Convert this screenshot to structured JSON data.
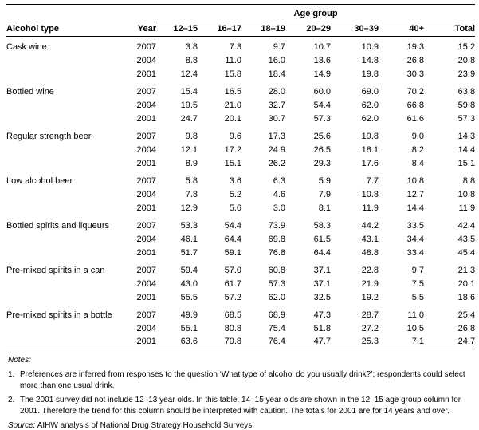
{
  "colors": {
    "text": "#000000",
    "rule": "#000000",
    "background": "#ffffff"
  },
  "table": {
    "spanner": "Age group",
    "columns": [
      "Alcohol type",
      "Year",
      "12–15",
      "16–17",
      "18–19",
      "20–29",
      "30–39",
      "40+",
      "Total"
    ],
    "groups": [
      {
        "label": "Cask wine",
        "rows": [
          {
            "year": "2007",
            "values": [
              "3.8",
              "7.3",
              "9.7",
              "10.7",
              "10.9",
              "19.3",
              "15.2"
            ]
          },
          {
            "year": "2004",
            "values": [
              "8.8",
              "11.0",
              "16.0",
              "13.6",
              "14.8",
              "26.8",
              "20.8"
            ]
          },
          {
            "year": "2001",
            "values": [
              "12.4",
              "15.8",
              "18.4",
              "14.9",
              "19.8",
              "30.3",
              "23.9"
            ]
          }
        ]
      },
      {
        "label": "Bottled wine",
        "rows": [
          {
            "year": "2007",
            "values": [
              "15.4",
              "16.5",
              "28.0",
              "60.0",
              "69.0",
              "70.2",
              "63.8"
            ]
          },
          {
            "year": "2004",
            "values": [
              "19.5",
              "21.0",
              "32.7",
              "54.4",
              "62.0",
              "66.8",
              "59.8"
            ]
          },
          {
            "year": "2001",
            "values": [
              "24.7",
              "20.1",
              "30.7",
              "57.3",
              "62.0",
              "61.6",
              "57.3"
            ]
          }
        ]
      },
      {
        "label": "Regular strength beer",
        "rows": [
          {
            "year": "2007",
            "values": [
              "9.8",
              "9.6",
              "17.3",
              "25.6",
              "19.8",
              "9.0",
              "14.3"
            ]
          },
          {
            "year": "2004",
            "values": [
              "12.1",
              "17.2",
              "24.9",
              "26.5",
              "18.1",
              "8.2",
              "14.4"
            ]
          },
          {
            "year": "2001",
            "values": [
              "8.9",
              "15.1",
              "26.2",
              "29.3",
              "17.6",
              "8.4",
              "15.1"
            ]
          }
        ]
      },
      {
        "label": "Low alcohol beer",
        "rows": [
          {
            "year": "2007",
            "values": [
              "5.8",
              "3.6",
              "6.3",
              "5.9",
              "7.7",
              "10.8",
              "8.8"
            ]
          },
          {
            "year": "2004",
            "values": [
              "7.8",
              "5.2",
              "4.6",
              "7.9",
              "10.8",
              "12.7",
              "10.8"
            ]
          },
          {
            "year": "2001",
            "values": [
              "12.9",
              "5.6",
              "3.0",
              "8.1",
              "11.9",
              "14.4",
              "11.9"
            ]
          }
        ]
      },
      {
        "label": "Bottled spirits and liqueurs",
        "rows": [
          {
            "year": "2007",
            "values": [
              "53.3",
              "54.4",
              "73.9",
              "58.3",
              "44.2",
              "33.5",
              "42.4"
            ]
          },
          {
            "year": "2004",
            "values": [
              "46.1",
              "64.4",
              "69.8",
              "61.5",
              "43.1",
              "34.4",
              "43.5"
            ]
          },
          {
            "year": "2001",
            "values": [
              "51.7",
              "59.1",
              "76.8",
              "64.4",
              "48.8",
              "33.4",
              "45.4"
            ]
          }
        ]
      },
      {
        "label": "Pre-mixed spirits in a can",
        "rows": [
          {
            "year": "2007",
            "values": [
              "59.4",
              "57.0",
              "60.8",
              "37.1",
              "22.8",
              "9.7",
              "21.3"
            ]
          },
          {
            "year": "2004",
            "values": [
              "43.0",
              "61.7",
              "57.3",
              "37.1",
              "21.9",
              "7.5",
              "20.1"
            ]
          },
          {
            "year": "2001",
            "values": [
              "55.5",
              "57.2",
              "62.0",
              "32.5",
              "19.2",
              "5.5",
              "18.6"
            ]
          }
        ]
      },
      {
        "label": "Pre-mixed spirits in a bottle",
        "rows": [
          {
            "year": "2007",
            "values": [
              "49.9",
              "68.5",
              "68.9",
              "47.3",
              "28.7",
              "11.0",
              "25.4"
            ]
          },
          {
            "year": "2004",
            "values": [
              "55.1",
              "80.8",
              "75.4",
              "51.8",
              "27.2",
              "10.5",
              "26.8"
            ]
          },
          {
            "year": "2001",
            "values": [
              "63.6",
              "70.8",
              "76.4",
              "47.7",
              "25.3",
              "7.1",
              "24.7"
            ]
          }
        ]
      }
    ]
  },
  "notes": {
    "heading": "Notes:",
    "items": [
      {
        "num": "1.",
        "text": "Preferences are inferred from responses to the question ‘What type of alcohol do you usually drink?’; respondents could select more than one usual drink."
      },
      {
        "num": "2.",
        "text": "The 2001 survey did not include 12–13 year olds. In this table, 14–15 year olds are shown in the 12–15 age group column for 2001. Therefore the trend for this column should be interpreted with caution. The totals for 2001 are for 14 years and over."
      }
    ],
    "source_label": "Source:",
    "source_text": " AIHW analysis of National Drug Strategy Household Surveys."
  }
}
